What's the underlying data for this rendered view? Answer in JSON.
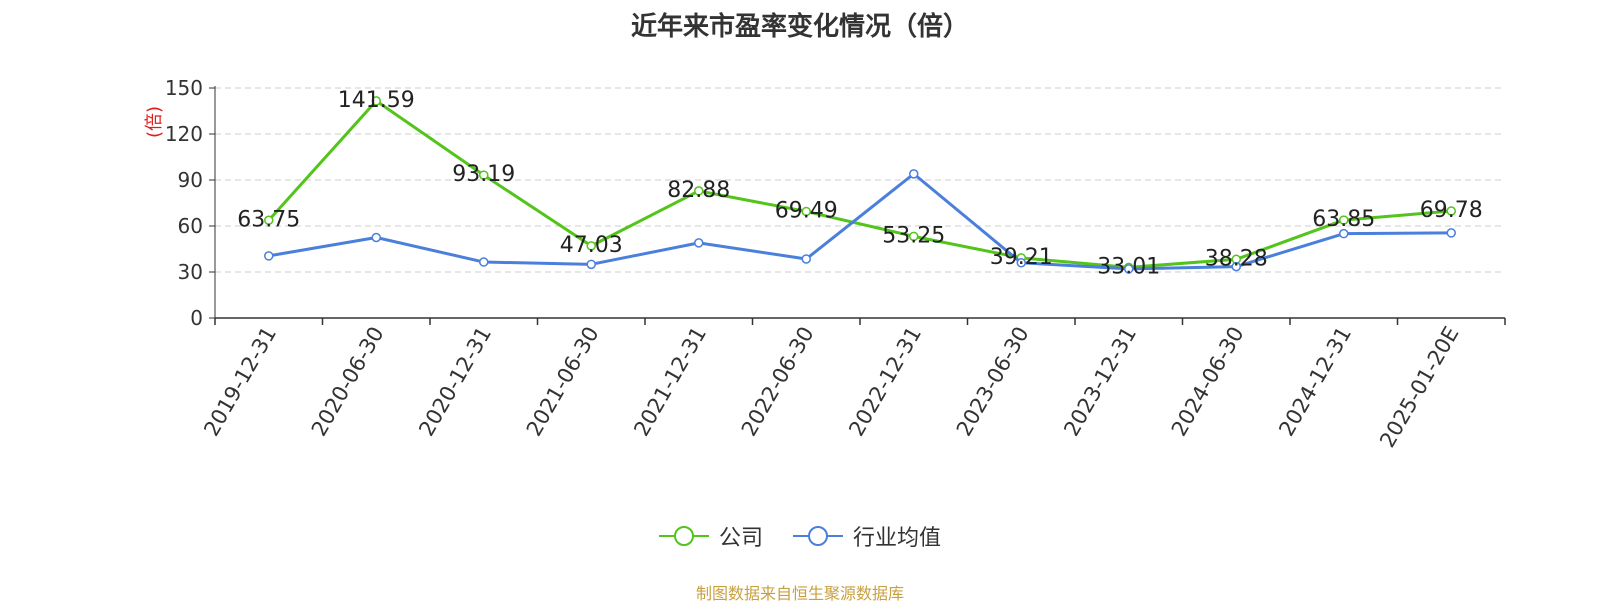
{
  "chart_data": {
    "type": "line",
    "title": "近年来市盈率变化情况（倍）",
    "ylabel": "(倍)",
    "ylim": [
      0,
      150
    ],
    "yticks": [
      0,
      30,
      60,
      90,
      120,
      150
    ],
    "grid": true,
    "legend_position": "bottom",
    "categories": [
      "2019-12-31",
      "2020-06-30",
      "2020-12-31",
      "2021-06-30",
      "2021-12-31",
      "2022-06-30",
      "2022-12-31",
      "2023-06-30",
      "2023-12-31",
      "2024-06-30",
      "2024-12-31",
      "2025-01-20E"
    ],
    "series": [
      {
        "name": "公司",
        "color": "#52c41a",
        "values": [
          63.75,
          141.59,
          93.19,
          47.03,
          82.88,
          69.49,
          53.25,
          39.21,
          33.01,
          38.28,
          63.85,
          69.78
        ],
        "labels": [
          "63.75",
          "141.59",
          "93.19",
          "47.03",
          "82.88",
          "69.49",
          "53.25",
          "39.21",
          "33.01",
          "38.28",
          "63.85",
          "69.78"
        ]
      },
      {
        "name": "行业均值",
        "color": "#4a7fdc",
        "values": [
          40.5,
          52.5,
          36.5,
          35.0,
          49.0,
          38.5,
          94.0,
          36.0,
          32.0,
          33.5,
          55.0,
          55.5
        ]
      }
    ],
    "source": "制图数据来自恒生聚源数据库",
    "source_color": "#c8a040",
    "ylabel_color": "#e02020"
  }
}
